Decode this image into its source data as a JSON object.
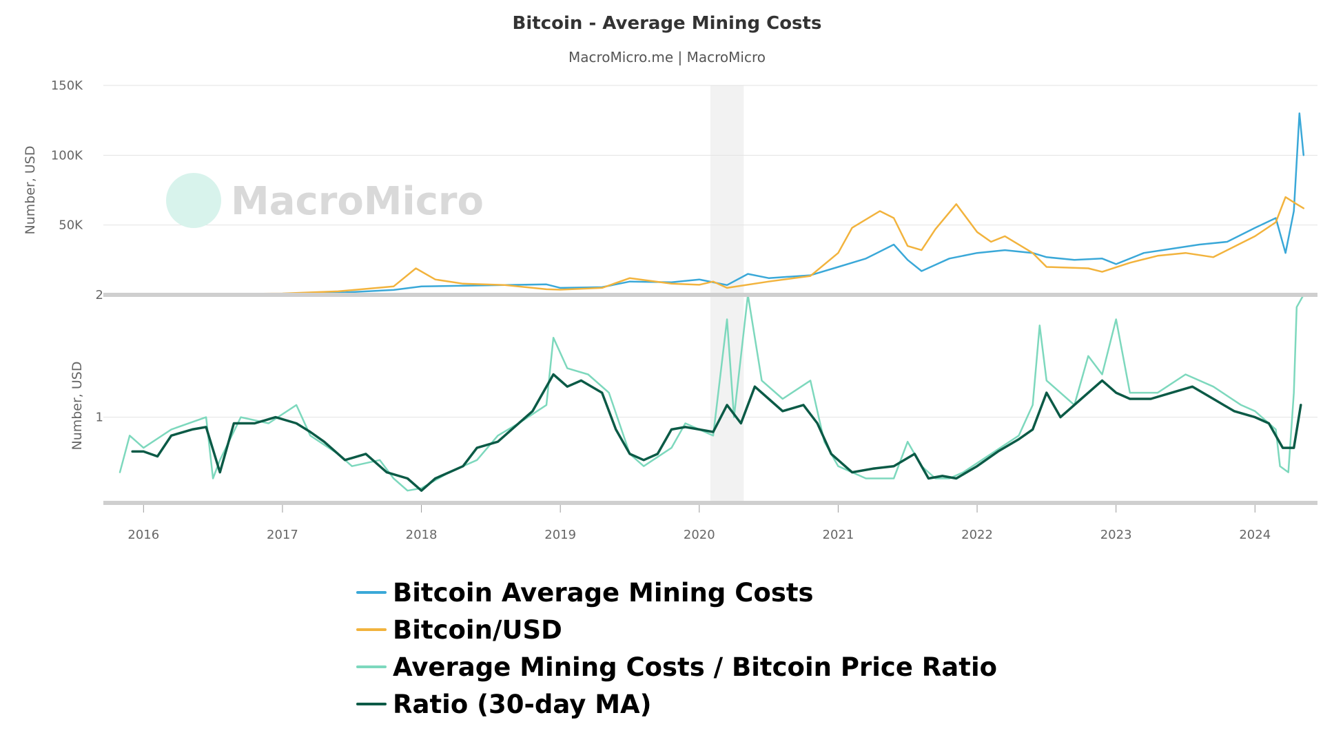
{
  "chart_data": {
    "type": "line",
    "title": "Bitcoin - Average Mining Costs",
    "subtitle": "MacroMicro.me | MacroMicro",
    "watermark": "MacroMicro",
    "x_ticks": [
      "2016",
      "2017",
      "2018",
      "2019",
      "2020",
      "2021",
      "2022",
      "2023",
      "2024"
    ],
    "x_range": [
      2015.8,
      2024.45
    ],
    "shaded_range": [
      2020.08,
      2020.32
    ],
    "upper_panel": {
      "ylabel": "Number, USD",
      "ylim": [
        0,
        150000
      ],
      "y_ticks": [
        {
          "value": 0,
          "label": ""
        },
        {
          "value": 50000,
          "label": "50K"
        },
        {
          "value": 100000,
          "label": "100K"
        },
        {
          "value": 150000,
          "label": "150K"
        }
      ],
      "series": [
        {
          "name": "Bitcoin Average Mining Costs",
          "color": "#3aa8d8",
          "points": [
            [
              2015.83,
              300
            ],
            [
              2016.0,
              400
            ],
            [
              2016.5,
              600
            ],
            [
              2017.0,
              900
            ],
            [
              2017.4,
              1500
            ],
            [
              2017.8,
              3500
            ],
            [
              2018.0,
              6000
            ],
            [
              2018.3,
              6500
            ],
            [
              2018.6,
              7000
            ],
            [
              2018.9,
              7500
            ],
            [
              2019.0,
              5000
            ],
            [
              2019.3,
              5500
            ],
            [
              2019.5,
              9500
            ],
            [
              2019.8,
              9000
            ],
            [
              2020.0,
              11000
            ],
            [
              2020.2,
              7000
            ],
            [
              2020.35,
              15000
            ],
            [
              2020.5,
              12000
            ],
            [
              2020.8,
              14000
            ],
            [
              2021.0,
              20000
            ],
            [
              2021.2,
              26000
            ],
            [
              2021.4,
              36000
            ],
            [
              2021.5,
              25000
            ],
            [
              2021.6,
              17000
            ],
            [
              2021.8,
              26000
            ],
            [
              2022.0,
              30000
            ],
            [
              2022.2,
              32000
            ],
            [
              2022.4,
              30000
            ],
            [
              2022.5,
              27000
            ],
            [
              2022.7,
              25000
            ],
            [
              2022.9,
              26000
            ],
            [
              2023.0,
              22000
            ],
            [
              2023.2,
              30000
            ],
            [
              2023.4,
              33000
            ],
            [
              2023.6,
              36000
            ],
            [
              2023.8,
              38000
            ],
            [
              2024.0,
              48000
            ],
            [
              2024.15,
              55000
            ],
            [
              2024.22,
              30000
            ],
            [
              2024.28,
              60000
            ],
            [
              2024.32,
              130000
            ],
            [
              2024.35,
              100000
            ]
          ]
        },
        {
          "name": "Bitcoin/USD",
          "color": "#f2b33d",
          "points": [
            [
              2015.83,
              300
            ],
            [
              2016.0,
              430
            ],
            [
              2016.5,
              650
            ],
            [
              2017.0,
              1000
            ],
            [
              2017.4,
              2500
            ],
            [
              2017.8,
              6000
            ],
            [
              2017.96,
              19000
            ],
            [
              2018.1,
              11000
            ],
            [
              2018.3,
              8000
            ],
            [
              2018.6,
              7000
            ],
            [
              2018.9,
              4000
            ],
            [
              2019.0,
              3700
            ],
            [
              2019.3,
              5000
            ],
            [
              2019.5,
              12000
            ],
            [
              2019.8,
              8000
            ],
            [
              2020.0,
              7200
            ],
            [
              2020.1,
              9500
            ],
            [
              2020.2,
              5000
            ],
            [
              2020.5,
              9500
            ],
            [
              2020.8,
              13500
            ],
            [
              2021.0,
              30000
            ],
            [
              2021.1,
              48000
            ],
            [
              2021.3,
              60000
            ],
            [
              2021.4,
              55000
            ],
            [
              2021.5,
              35000
            ],
            [
              2021.6,
              32000
            ],
            [
              2021.7,
              47000
            ],
            [
              2021.85,
              65000
            ],
            [
              2022.0,
              45000
            ],
            [
              2022.1,
              38000
            ],
            [
              2022.2,
              42000
            ],
            [
              2022.4,
              30000
            ],
            [
              2022.5,
              20000
            ],
            [
              2022.8,
              19000
            ],
            [
              2022.9,
              16500
            ],
            [
              2023.1,
              23000
            ],
            [
              2023.3,
              28000
            ],
            [
              2023.5,
              30000
            ],
            [
              2023.7,
              27000
            ],
            [
              2023.9,
              37000
            ],
            [
              2024.0,
              42000
            ],
            [
              2024.15,
              52000
            ],
            [
              2024.22,
              70000
            ],
            [
              2024.3,
              65000
            ],
            [
              2024.35,
              62000
            ]
          ]
        }
      ]
    },
    "lower_panel": {
      "ylabel": "Number, USD",
      "ylim": [
        0.3,
        2
      ],
      "y_ticks": [
        {
          "value": 1,
          "label": "1"
        },
        {
          "value": 2,
          "label": "2"
        }
      ],
      "series": [
        {
          "name": "Average Mining Costs / Bitcoin Price Ratio",
          "color": "#7dd8bd",
          "points": [
            [
              2015.83,
              0.55
            ],
            [
              2015.9,
              0.85
            ],
            [
              2016.0,
              0.75
            ],
            [
              2016.2,
              0.9
            ],
            [
              2016.45,
              1.0
            ],
            [
              2016.5,
              0.5
            ],
            [
              2016.55,
              0.65
            ],
            [
              2016.7,
              1.0
            ],
            [
              2016.9,
              0.95
            ],
            [
              2017.1,
              1.1
            ],
            [
              2017.2,
              0.85
            ],
            [
              2017.4,
              0.7
            ],
            [
              2017.5,
              0.6
            ],
            [
              2017.7,
              0.65
            ],
            [
              2017.8,
              0.5
            ],
            [
              2017.9,
              0.4
            ],
            [
              2018.0,
              0.42
            ],
            [
              2018.2,
              0.55
            ],
            [
              2018.4,
              0.65
            ],
            [
              2018.55,
              0.85
            ],
            [
              2018.7,
              0.95
            ],
            [
              2018.9,
              1.1
            ],
            [
              2018.95,
              1.65
            ],
            [
              2019.05,
              1.4
            ],
            [
              2019.2,
              1.35
            ],
            [
              2019.35,
              1.2
            ],
            [
              2019.5,
              0.7
            ],
            [
              2019.6,
              0.6
            ],
            [
              2019.8,
              0.75
            ],
            [
              2019.9,
              0.95
            ],
            [
              2020.0,
              0.9
            ],
            [
              2020.1,
              0.85
            ],
            [
              2020.2,
              1.8
            ],
            [
              2020.25,
              1.0
            ],
            [
              2020.35,
              2.0
            ],
            [
              2020.45,
              1.3
            ],
            [
              2020.6,
              1.15
            ],
            [
              2020.8,
              1.3
            ],
            [
              2020.9,
              0.8
            ],
            [
              2021.0,
              0.6
            ],
            [
              2021.2,
              0.5
            ],
            [
              2021.4,
              0.5
            ],
            [
              2021.5,
              0.8
            ],
            [
              2021.6,
              0.6
            ],
            [
              2021.7,
              0.5
            ],
            [
              2021.8,
              0.5
            ],
            [
              2021.9,
              0.55
            ],
            [
              2022.1,
              0.7
            ],
            [
              2022.3,
              0.85
            ],
            [
              2022.4,
              1.1
            ],
            [
              2022.45,
              1.75
            ],
            [
              2022.5,
              1.3
            ],
            [
              2022.7,
              1.1
            ],
            [
              2022.8,
              1.5
            ],
            [
              2022.9,
              1.35
            ],
            [
              2023.0,
              1.8
            ],
            [
              2023.1,
              1.2
            ],
            [
              2023.3,
              1.2
            ],
            [
              2023.5,
              1.35
            ],
            [
              2023.7,
              1.25
            ],
            [
              2023.9,
              1.1
            ],
            [
              2024.0,
              1.05
            ],
            [
              2024.15,
              0.9
            ],
            [
              2024.18,
              0.6
            ],
            [
              2024.24,
              0.55
            ],
            [
              2024.28,
              1.2
            ],
            [
              2024.3,
              1.9
            ],
            [
              2024.35,
              2.0
            ]
          ]
        },
        {
          "name": "Ratio (30-day MA)",
          "color": "#0b5a46",
          "points": [
            [
              2015.92,
              0.72
            ],
            [
              2016.0,
              0.72
            ],
            [
              2016.1,
              0.68
            ],
            [
              2016.2,
              0.85
            ],
            [
              2016.35,
              0.9
            ],
            [
              2016.45,
              0.92
            ],
            [
              2016.55,
              0.55
            ],
            [
              2016.65,
              0.95
            ],
            [
              2016.8,
              0.95
            ],
            [
              2016.95,
              1.0
            ],
            [
              2017.1,
              0.95
            ],
            [
              2017.2,
              0.88
            ],
            [
              2017.3,
              0.8
            ],
            [
              2017.45,
              0.65
            ],
            [
              2017.6,
              0.7
            ],
            [
              2017.75,
              0.55
            ],
            [
              2017.9,
              0.5
            ],
            [
              2018.0,
              0.4
            ],
            [
              2018.1,
              0.5
            ],
            [
              2018.2,
              0.55
            ],
            [
              2018.3,
              0.6
            ],
            [
              2018.4,
              0.75
            ],
            [
              2018.55,
              0.8
            ],
            [
              2018.65,
              0.9
            ],
            [
              2018.8,
              1.05
            ],
            [
              2018.95,
              1.35
            ],
            [
              2019.05,
              1.25
            ],
            [
              2019.15,
              1.3
            ],
            [
              2019.3,
              1.2
            ],
            [
              2019.4,
              0.9
            ],
            [
              2019.5,
              0.7
            ],
            [
              2019.6,
              0.65
            ],
            [
              2019.7,
              0.7
            ],
            [
              2019.8,
              0.9
            ],
            [
              2019.9,
              0.92
            ],
            [
              2020.0,
              0.9
            ],
            [
              2020.1,
              0.88
            ],
            [
              2020.2,
              1.1
            ],
            [
              2020.3,
              0.95
            ],
            [
              2020.4,
              1.25
            ],
            [
              2020.5,
              1.15
            ],
            [
              2020.6,
              1.05
            ],
            [
              2020.75,
              1.1
            ],
            [
              2020.85,
              0.95
            ],
            [
              2020.95,
              0.7
            ],
            [
              2021.1,
              0.55
            ],
            [
              2021.25,
              0.58
            ],
            [
              2021.4,
              0.6
            ],
            [
              2021.55,
              0.7
            ],
            [
              2021.65,
              0.5
            ],
            [
              2021.75,
              0.52
            ],
            [
              2021.85,
              0.5
            ],
            [
              2022.0,
              0.6
            ],
            [
              2022.15,
              0.72
            ],
            [
              2022.3,
              0.82
            ],
            [
              2022.4,
              0.9
            ],
            [
              2022.5,
              1.2
            ],
            [
              2022.6,
              1.0
            ],
            [
              2022.75,
              1.15
            ],
            [
              2022.9,
              1.3
            ],
            [
              2023.0,
              1.2
            ],
            [
              2023.1,
              1.15
            ],
            [
              2023.25,
              1.15
            ],
            [
              2023.4,
              1.2
            ],
            [
              2023.55,
              1.25
            ],
            [
              2023.7,
              1.15
            ],
            [
              2023.85,
              1.05
            ],
            [
              2024.0,
              1.0
            ],
            [
              2024.1,
              0.95
            ],
            [
              2024.2,
              0.75
            ],
            [
              2024.28,
              0.75
            ],
            [
              2024.33,
              1.1
            ]
          ]
        }
      ]
    },
    "legend": [
      {
        "label": "Bitcoin Average Mining Costs",
        "color": "#3aa8d8"
      },
      {
        "label": "Bitcoin/USD",
        "color": "#f2b33d"
      },
      {
        "label": "Average Mining Costs / Bitcoin Price Ratio",
        "color": "#7dd8bd"
      },
      {
        "label": "Ratio (30-day MA)",
        "color": "#0b5a46"
      }
    ],
    "grid": true,
    "legend_position": "bottom"
  }
}
